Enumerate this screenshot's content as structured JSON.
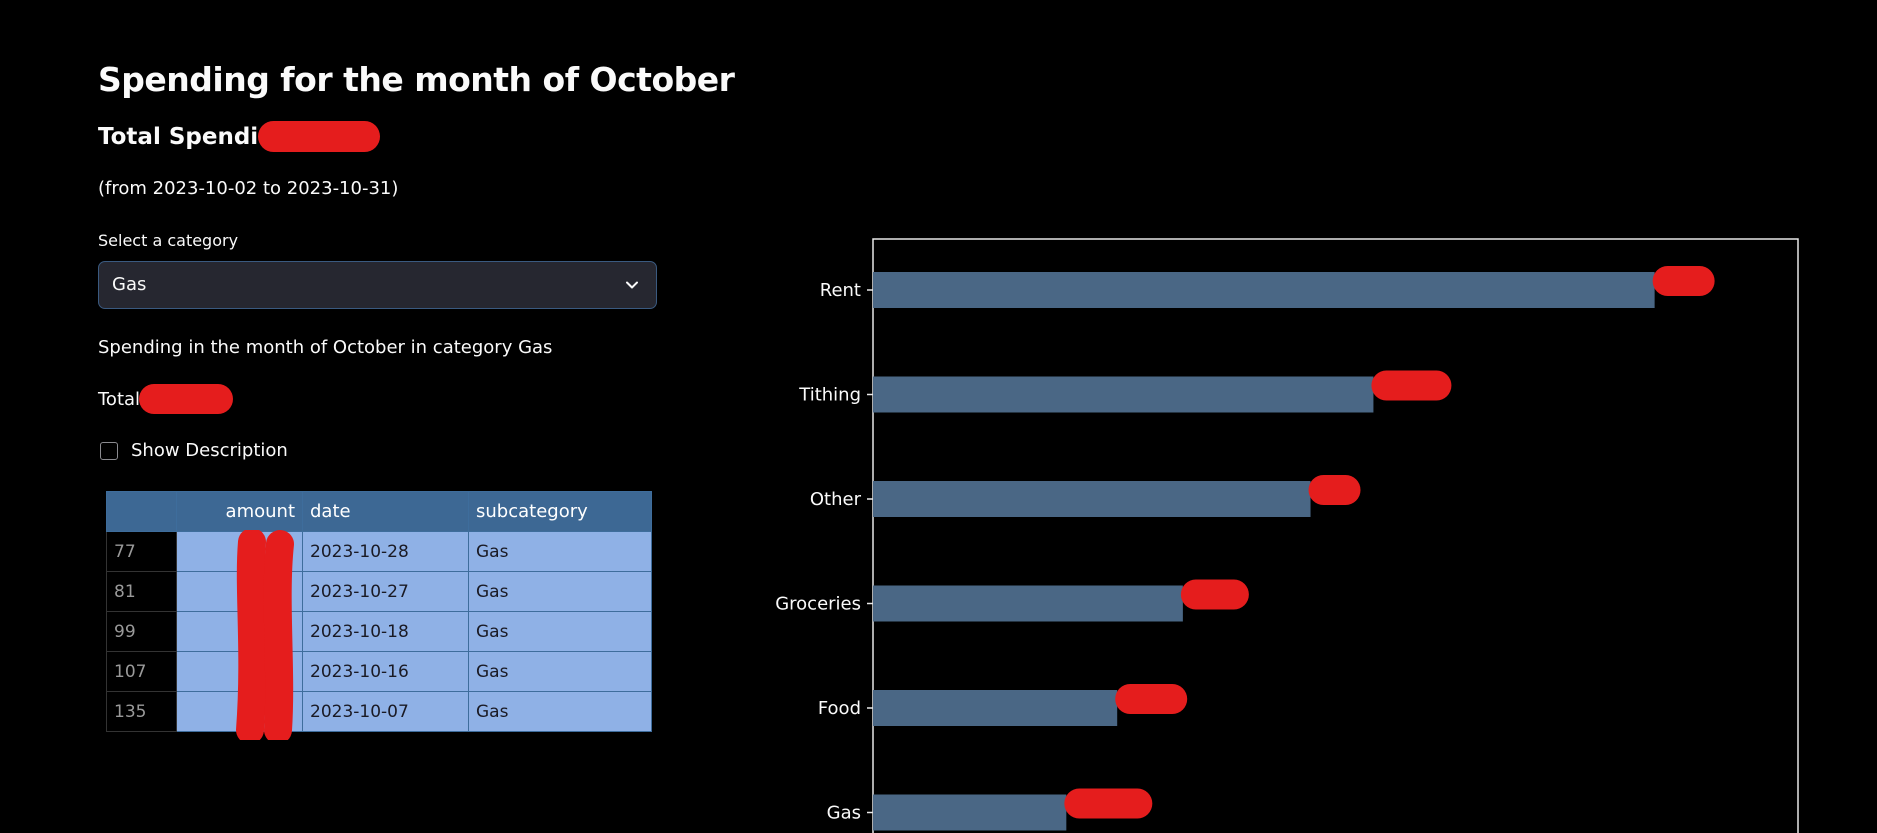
{
  "page": {
    "title": "Spending for the month of October",
    "total_spending_label": "Total Spending:",
    "date_range": "(from 2023-10-02 to 2023-10-31)"
  },
  "select": {
    "label": "Select a category",
    "value": "Gas"
  },
  "category_caption": "Spending in the month of October in category Gas",
  "total_label": "Total",
  "checkbox": {
    "label": "Show Description",
    "checked": false
  },
  "table": {
    "columns": [
      "",
      "amount",
      "date",
      "subcategory"
    ],
    "rows": [
      {
        "index": "77",
        "amount": "",
        "date": "2023-10-28",
        "subcategory": "Gas"
      },
      {
        "index": "81",
        "amount": "",
        "date": "2023-10-27",
        "subcategory": "Gas"
      },
      {
        "index": "99",
        "amount": "",
        "date": "2023-10-18",
        "subcategory": "Gas"
      },
      {
        "index": "107",
        "amount": "",
        "date": "2023-10-16",
        "subcategory": "Gas"
      },
      {
        "index": "135",
        "amount": "",
        "date": "2023-10-07",
        "subcategory": "Gas"
      }
    ]
  },
  "colors": {
    "background": "#000000",
    "bar": "#4a6785",
    "redaction": "#e51d1d",
    "table_header": "#3d6894",
    "table_cell": "#8fb1e6"
  },
  "chart_data": {
    "type": "bar",
    "orientation": "horizontal",
    "categories": [
      "Rent",
      "Tithing",
      "Other",
      "Groceries",
      "Food",
      "Gas"
    ],
    "values": [
      0.845,
      0.541,
      0.473,
      0.335,
      0.264,
      0.209
    ],
    "value_units": "fraction of plot width (values redacted)",
    "data_labels_redacted": true
  }
}
